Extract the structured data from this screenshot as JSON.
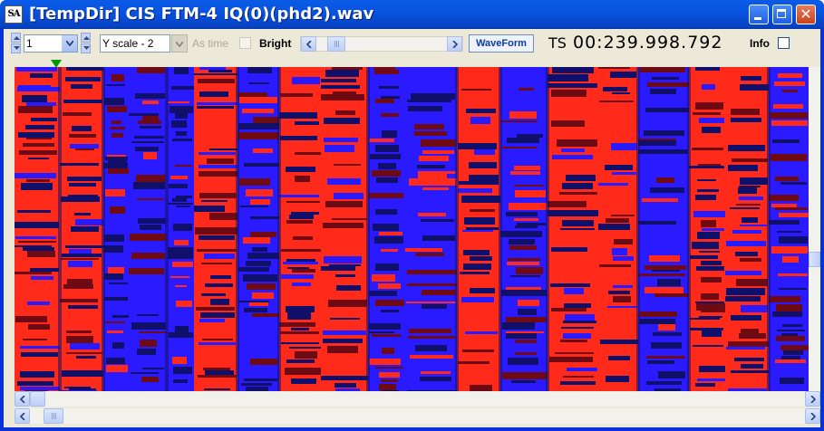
{
  "window": {
    "title": "[TempDir] CIS FTM-4 IQ(0)(phd2).wav",
    "app_icon_text": "SA",
    "icons": [
      "app-icon",
      "minimize-icon",
      "maximize-icon",
      "close-icon"
    ]
  },
  "toolbar": {
    "channel_value": "1",
    "yscale_value": "Y scale - 2",
    "as_time_label": "As time",
    "bright_label": "Bright",
    "waveform_label": "WaveForm",
    "ts_label": "TS",
    "ts_value": "00:239.998.792",
    "info_label": "Info",
    "as_time_checked": false,
    "bright_checked": false,
    "info_checked": false,
    "slider_position": 0.05
  },
  "plot": {
    "marker_color": "#009b00",
    "colors": {
      "red": "#ff2a1a",
      "blue": "#2a1aff",
      "dark": "#10106a",
      "maroon": "#6e0a14"
    }
  },
  "scrollbars": {
    "vertical_position": 0.5,
    "inner_horizontal_position": 0.0,
    "outer_horizontal_position": 0.0
  }
}
